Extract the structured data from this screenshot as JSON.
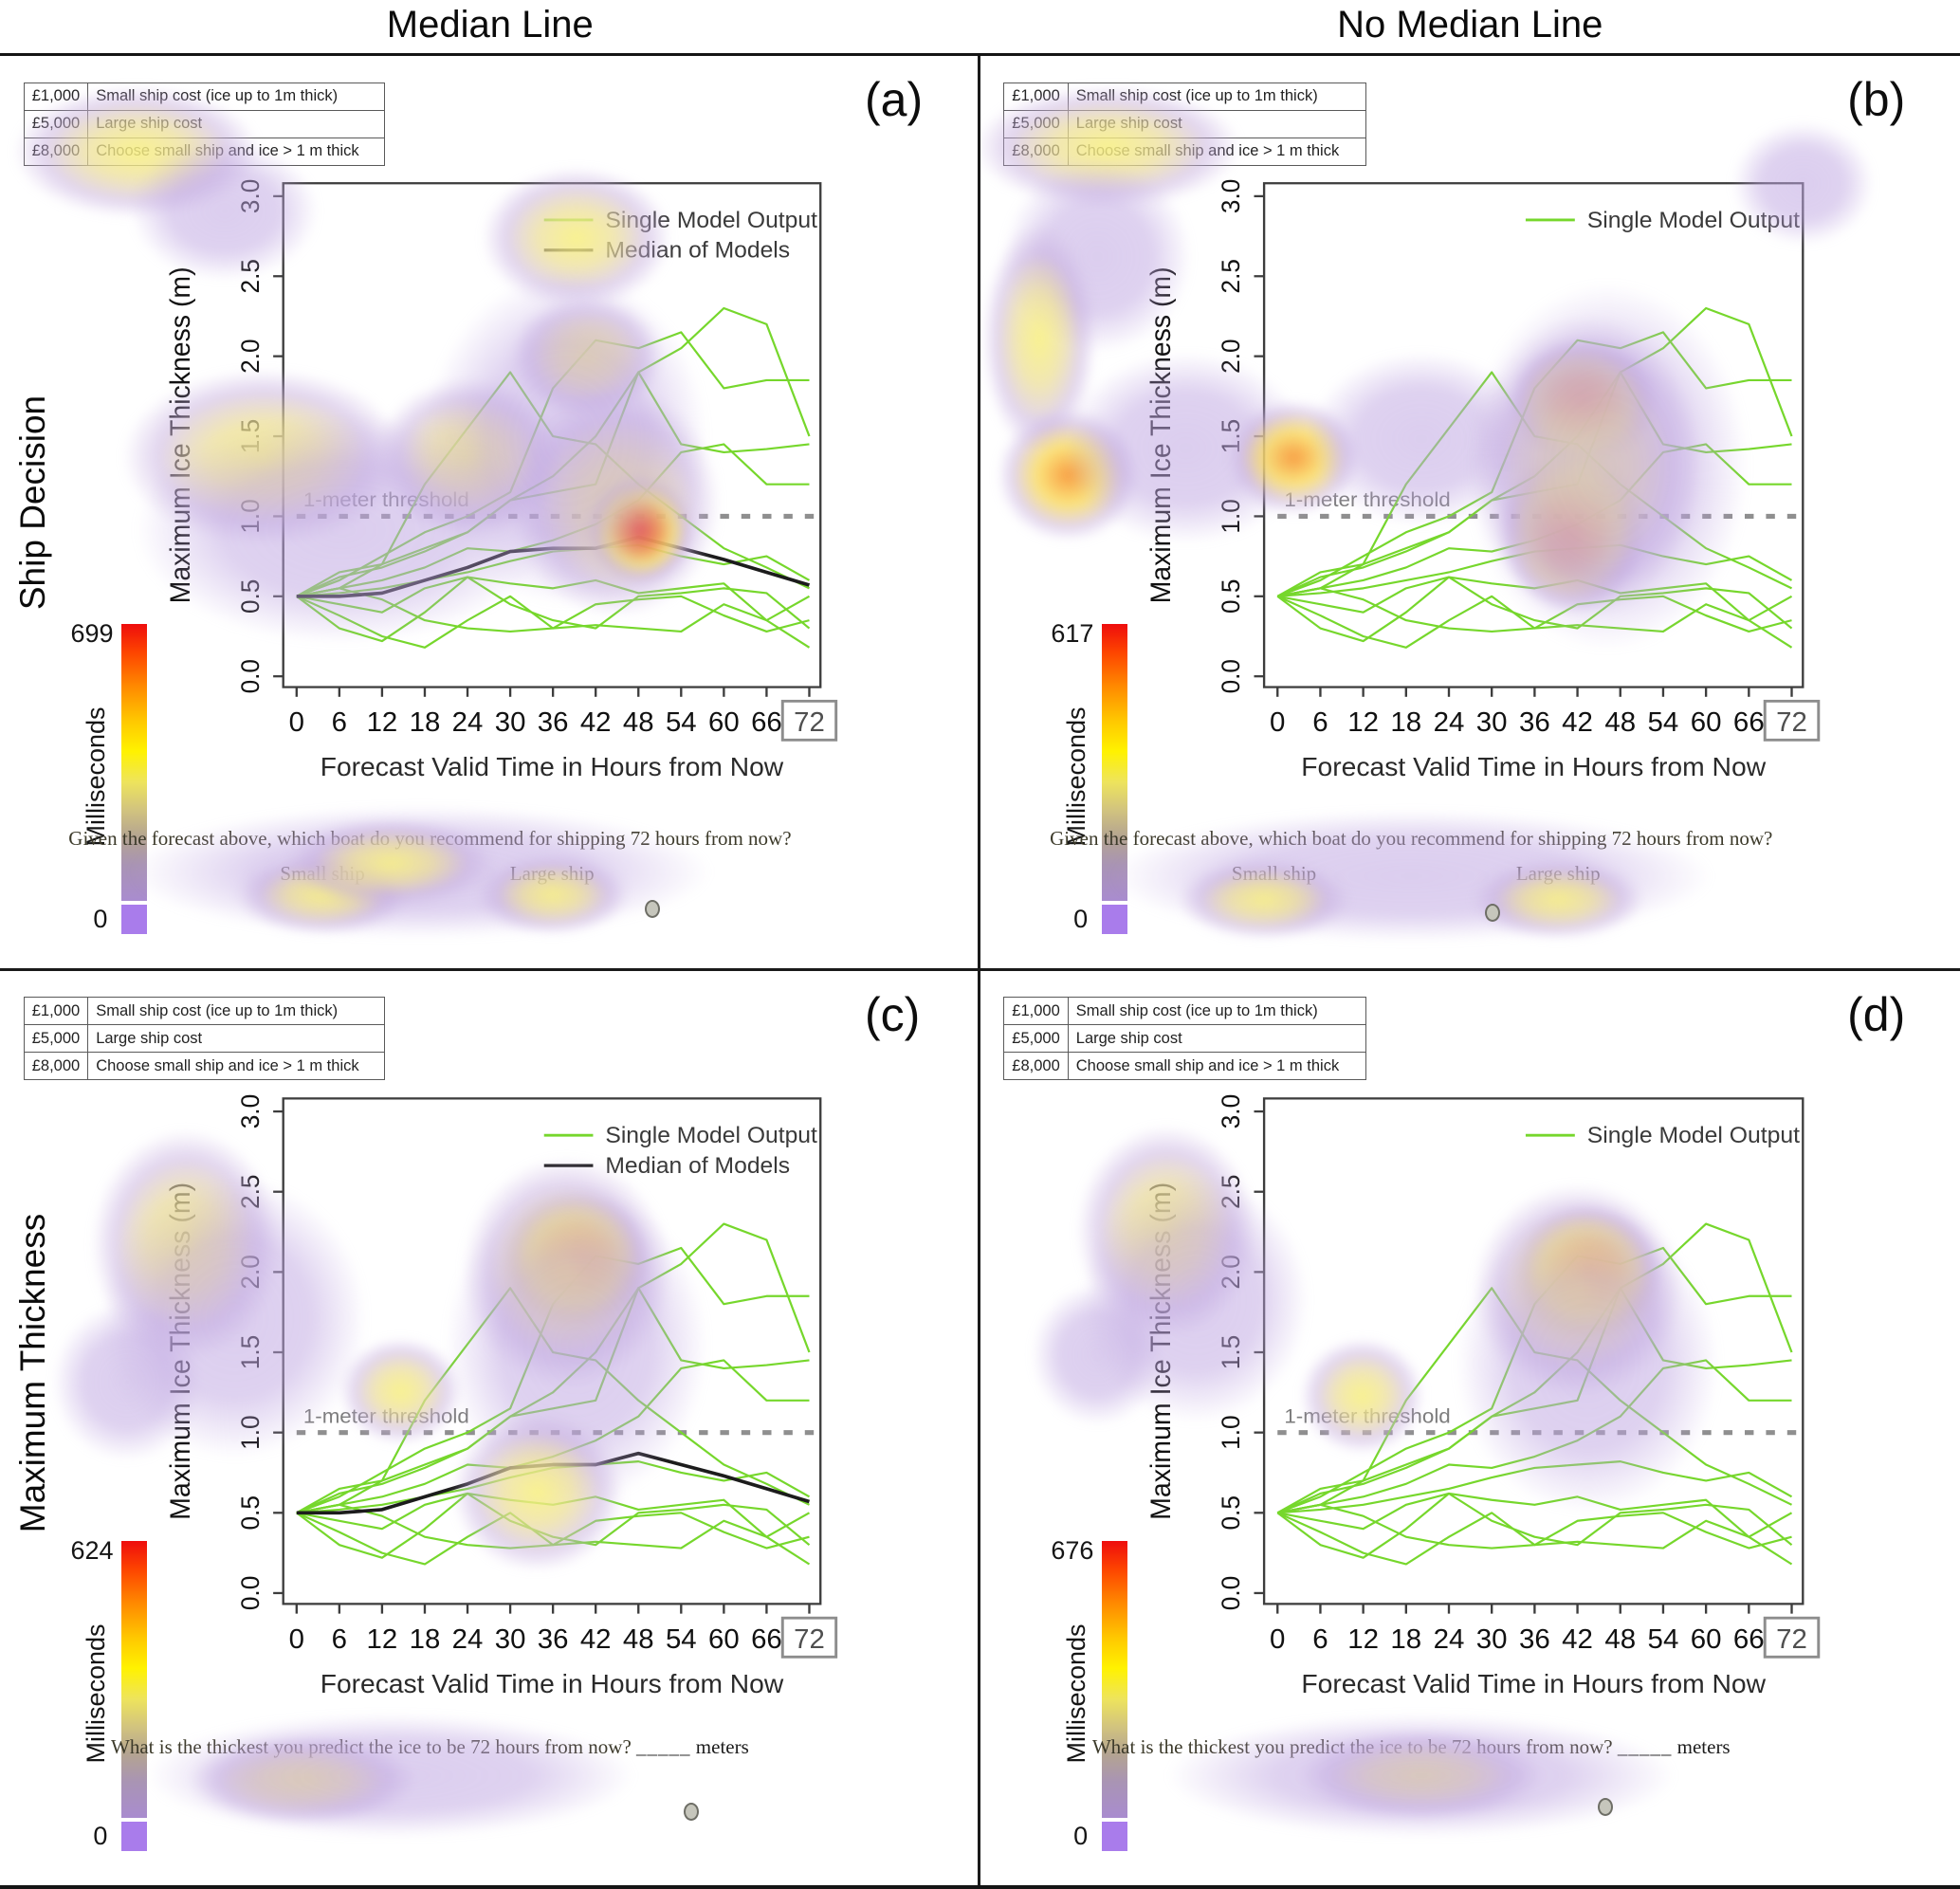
{
  "titles": {
    "left": "Median Line",
    "right": "No Median Line"
  },
  "cost_table": {
    "rows": [
      {
        "price": "£1,000",
        "desc": "Small ship cost (ice up to 1m thick)"
      },
      {
        "price": "£5,000",
        "desc": "Large ship cost"
      },
      {
        "price": "£8,000",
        "desc": "Choose small ship and ice > 1 m thick"
      }
    ]
  },
  "questions": {
    "ship": {
      "text": "Given the forecast above, which boat do you recommend for shipping 72 hours from now?",
      "options": [
        "Small ship",
        "Large ship"
      ]
    },
    "thickness": {
      "text": "What is the thickest you predict the ice to be 72 hours from now?",
      "blank": "_____",
      "unit": "meters"
    }
  },
  "colorbar": {
    "label": "Milliseconds",
    "min": "0"
  },
  "chart_data": {
    "type": "line",
    "title": "",
    "xlabel": "Forecast Valid Time in Hours from Now",
    "ylabel": "Maximum Ice Thickness (m)",
    "xlim": [
      0,
      72
    ],
    "ylim": [
      0.0,
      3.0
    ],
    "xticks": [
      0,
      6,
      12,
      18,
      24,
      30,
      36,
      42,
      48,
      54,
      60,
      66,
      72
    ],
    "yticks": [
      "0.0",
      "0.5",
      "1.0",
      "1.5",
      "2.0",
      "2.5",
      "3.0"
    ],
    "boxed_xtick": 72,
    "threshold": {
      "value": 1.0,
      "label": "1-meter threshold"
    },
    "legend": {
      "single": "Single Model Output",
      "median": "Median of Models",
      "position": "top-right"
    },
    "colors": {
      "model_line": "#76d72c",
      "median_line": "#1c1c1c",
      "threshold_line": "#8f8f8f"
    },
    "x": [
      0,
      6,
      12,
      18,
      24,
      30,
      36,
      42,
      48,
      54,
      60,
      66,
      72
    ],
    "series": [
      {
        "name": "model-1",
        "values": [
          0.5,
          0.62,
          0.68,
          0.78,
          0.9,
          1.1,
          1.25,
          1.5,
          1.9,
          2.05,
          2.3,
          2.2,
          1.5
        ]
      },
      {
        "name": "model-2",
        "values": [
          0.5,
          0.55,
          0.7,
          1.2,
          1.55,
          1.9,
          1.5,
          1.45,
          1.2,
          1.0,
          0.8,
          0.68,
          0.55
        ]
      },
      {
        "name": "model-3",
        "values": [
          0.5,
          0.6,
          0.75,
          0.9,
          1.0,
          1.15,
          1.8,
          2.1,
          2.05,
          2.15,
          1.8,
          1.85,
          1.85
        ]
      },
      {
        "name": "model-4",
        "values": [
          0.5,
          0.65,
          0.7,
          0.8,
          0.9,
          1.1,
          1.15,
          1.2,
          1.9,
          1.45,
          1.4,
          1.42,
          1.45
        ]
      },
      {
        "name": "model-5",
        "values": [
          0.5,
          0.55,
          0.6,
          0.68,
          0.8,
          0.78,
          0.85,
          0.95,
          1.1,
          1.4,
          1.45,
          1.2,
          1.2
        ]
      },
      {
        "name": "model-6",
        "values": [
          0.5,
          0.52,
          0.55,
          0.6,
          0.65,
          0.72,
          0.78,
          0.8,
          0.82,
          0.75,
          0.7,
          0.75,
          0.6
        ]
      },
      {
        "name": "model-7",
        "values": [
          0.5,
          0.45,
          0.4,
          0.55,
          0.62,
          0.58,
          0.55,
          0.6,
          0.52,
          0.55,
          0.58,
          0.35,
          0.5
        ]
      },
      {
        "name": "model-8",
        "values": [
          0.5,
          0.3,
          0.22,
          0.4,
          0.62,
          0.45,
          0.35,
          0.3,
          0.5,
          0.52,
          0.55,
          0.52,
          0.3
        ]
      },
      {
        "name": "model-9",
        "values": [
          0.5,
          0.38,
          0.25,
          0.18,
          0.35,
          0.5,
          0.3,
          0.32,
          0.3,
          0.28,
          0.45,
          0.35,
          0.18
        ]
      },
      {
        "name": "model-10",
        "values": [
          0.5,
          0.55,
          0.48,
          0.35,
          0.3,
          0.28,
          0.3,
          0.45,
          0.48,
          0.5,
          0.38,
          0.28,
          0.35
        ]
      }
    ],
    "median": {
      "name": "Median of Models",
      "values": [
        0.5,
        0.5,
        0.52,
        0.6,
        0.68,
        0.78,
        0.8,
        0.8,
        0.87,
        0.8,
        0.73,
        0.65,
        0.57
      ]
    }
  },
  "panels": [
    {
      "id": "a",
      "label": "(a)",
      "row_label": "Ship Decision",
      "max_ms": "699",
      "show_median": true,
      "heat": [
        [
          14,
          10.5,
          13,
          7.5,
          1
        ],
        [
          23,
          17,
          10,
          8,
          0
        ],
        [
          59,
          20,
          10,
          8,
          1
        ],
        [
          27,
          44,
          15,
          10,
          1
        ],
        [
          48,
          44,
          10,
          9,
          1
        ],
        [
          60,
          33,
          8,
          7,
          1
        ],
        [
          63,
          49,
          11,
          13,
          1
        ],
        [
          65.5,
          52,
          5.5,
          6,
          3
        ],
        [
          58,
          42,
          15,
          19,
          0
        ],
        [
          35,
          52,
          22,
          13,
          0
        ],
        [
          43,
          89.5,
          31,
          7.5,
          0
        ],
        [
          33,
          92,
          9,
          4.5,
          1
        ],
        [
          56.5,
          92,
          8,
          4.5,
          1
        ],
        [
          40,
          88.5,
          11,
          5,
          1
        ]
      ]
    },
    {
      "id": "b",
      "label": "(b)",
      "row_label": "",
      "max_ms": "617",
      "show_median": false,
      "heat": [
        [
          13,
          10,
          14,
          7,
          1
        ],
        [
          84,
          14,
          7.5,
          7,
          0
        ],
        [
          12,
          22,
          10,
          11,
          0
        ],
        [
          6,
          31,
          6,
          13,
          1
        ],
        [
          9,
          46,
          7.5,
          7.5,
          2
        ],
        [
          21,
          43,
          13,
          11,
          0
        ],
        [
          32,
          44,
          7,
          6.5,
          2
        ],
        [
          45,
          42,
          12,
          10,
          0
        ],
        [
          61.5,
          38,
          7.5,
          7,
          3
        ],
        [
          60.5,
          52,
          7.5,
          9,
          3
        ],
        [
          62,
          45,
          12,
          17,
          1
        ],
        [
          64,
          45,
          15,
          21,
          0
        ],
        [
          44,
          90,
          32,
          7.5,
          0
        ],
        [
          29,
          92.5,
          9,
          4.5,
          1
        ],
        [
          59,
          92.5,
          9,
          4.5,
          1
        ]
      ]
    },
    {
      "id": "c",
      "label": "(c)",
      "row_label": "Maximum Thickness",
      "max_ms": "624",
      "show_median": true,
      "heat": [
        [
          19,
          30,
          10,
          13,
          1
        ],
        [
          13,
          45,
          8,
          9,
          0
        ],
        [
          24,
          38,
          14,
          16,
          0
        ],
        [
          59,
          31.5,
          7.5,
          7.5,
          3
        ],
        [
          58,
          33,
          11,
          13,
          1
        ],
        [
          59,
          41,
          14,
          18,
          0
        ],
        [
          41,
          46,
          6.5,
          6,
          1
        ],
        [
          55,
          57,
          9,
          9,
          1
        ],
        [
          31,
          88.5,
          12,
          5,
          1
        ],
        [
          40,
          88,
          26,
          7,
          0
        ]
      ]
    },
    {
      "id": "d",
      "label": "(d)",
      "row_label": "",
      "max_ms": "676",
      "show_median": false,
      "heat": [
        [
          19,
          28.5,
          9.5,
          12,
          1
        ],
        [
          12,
          42,
          7,
          8,
          0
        ],
        [
          22,
          36,
          12,
          14,
          0
        ],
        [
          62,
          33,
          7.5,
          7.5,
          3
        ],
        [
          61,
          35,
          11,
          12,
          1
        ],
        [
          62,
          43,
          14,
          17,
          0
        ],
        [
          39,
          46.5,
          6.5,
          6.5,
          1
        ],
        [
          45,
          88,
          13,
          5,
          1
        ],
        [
          45,
          88,
          27,
          7,
          0
        ]
      ]
    }
  ]
}
